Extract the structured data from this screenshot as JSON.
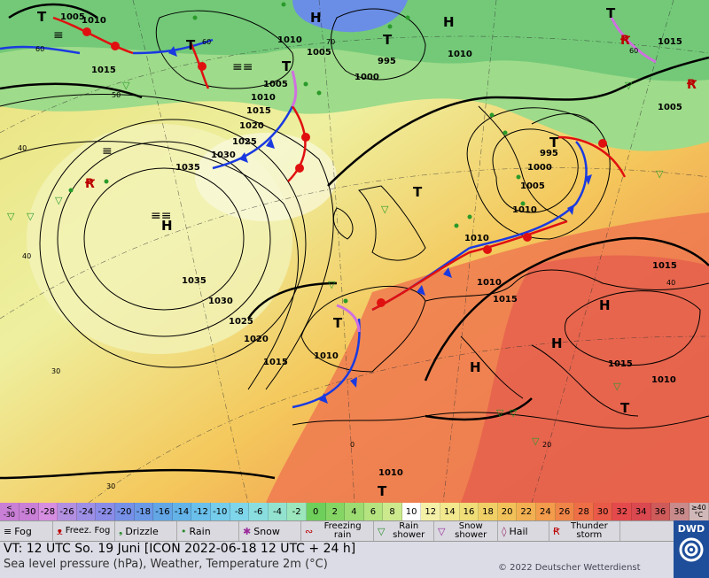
{
  "map": {
    "pressure_labels": [
      "1005",
      "1010",
      "1015",
      "1015",
      "1010",
      "1005",
      "1000",
      "995",
      "1010",
      "1015",
      "1005",
      "1010",
      "1015",
      "1020",
      "1025",
      "1030",
      "1035",
      "1035",
      "1030",
      "1025",
      "1020",
      "1015",
      "1010",
      "1000",
      "995",
      "1005",
      "1010",
      "1010",
      "1010",
      "1015",
      "1015",
      "1015",
      "1010",
      "1010",
      "1005"
    ],
    "high_symbol": "H",
    "low_symbol": "T",
    "temperature_contour_labels": [
      "60",
      "50",
      "40",
      "40",
      "30",
      "30",
      "20",
      "20",
      "30",
      "40",
      "50",
      "60",
      "70",
      "60"
    ]
  },
  "scale": {
    "first_label": [
      "<",
      "-30"
    ],
    "values": [
      "-30",
      "-28",
      "-26",
      "-24",
      "-22",
      "-20",
      "-18",
      "-16",
      "-14",
      "-12",
      "-10",
      "-8",
      "-6",
      "-4",
      "-2",
      "0",
      "2",
      "4",
      "6",
      "8",
      "10",
      "12",
      "14",
      "16",
      "18",
      "20",
      "22",
      "24",
      "26",
      "28",
      "30",
      "32",
      "34",
      "36",
      "38"
    ],
    "colors": [
      "#c97fd6",
      "#d68ee0",
      "#b28fe0",
      "#9d8ee6",
      "#8a8ce8",
      "#7590e6",
      "#6b99e6",
      "#63a6e6",
      "#63b3e8",
      "#6ac0ea",
      "#75cceb",
      "#7fd6ea",
      "#8adee0",
      "#92e2cf",
      "#9be6bc",
      "#6fcf5b",
      "#85d565",
      "#9cdc72",
      "#b4e380",
      "#cce98e",
      "#ffffff",
      "#f5f0a8",
      "#f2e88e",
      "#f0de78",
      "#f0d066",
      "#f2c25a",
      "#f2b052",
      "#f29c4c",
      "#f08548",
      "#ee6e46",
      "#ea5a48",
      "#e44a4c",
      "#da4850",
      "#cf5a5a",
      "#c88a8a"
    ],
    "last_label": [
      "≥40",
      "°C"
    ]
  },
  "legend": {
    "items": [
      {
        "symbol": "≡",
        "label": "Fog",
        "color": "#000"
      },
      {
        "symbol": "ᴥ",
        "label": "Freez. Fog",
        "color": "#b00"
      },
      {
        "symbol": "❟",
        "label": "Drizzle",
        "color": "#2a8a2a"
      },
      {
        "symbol": "•",
        "label": "Rain",
        "color": "#2a8a2a"
      },
      {
        "symbol": "✱",
        "label": "Snow",
        "color": "#9a2a9a"
      },
      {
        "symbol": "∾",
        "label": "Freezing rain",
        "color": "#b00"
      },
      {
        "symbol": "▽",
        "label": "Rain shower",
        "color": "#2a8a2a"
      },
      {
        "symbol": "▽",
        "label": "Snow shower",
        "color": "#9a2a9a"
      },
      {
        "symbol": "◊",
        "label": "Hail",
        "color": "#9a2a6a"
      },
      {
        "symbol": "Ꞧ",
        "label": "Thunder storm",
        "color": "#b00"
      }
    ]
  },
  "info": {
    "valid_time": "VT: 12 UTC So.  19 Juni [ICON 2022-06-18  12 UTC + 24 h]",
    "description": "Sea level pressure (hPa), Weather, Temperature 2m (°C)",
    "copyright": "© 2022 Deutscher Wetterdienst",
    "logo_text": "DWD"
  }
}
